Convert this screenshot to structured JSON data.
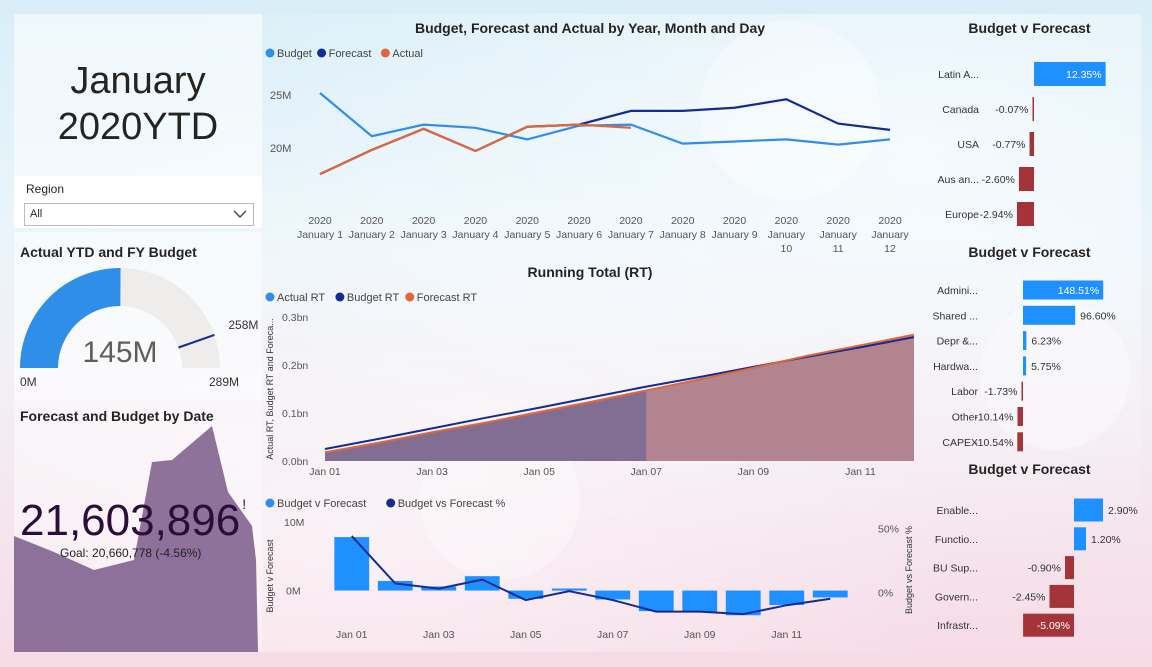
{
  "header": {
    "line1": "January",
    "line2": "2020YTD"
  },
  "region_slicer": {
    "label": "Region",
    "value": "All"
  },
  "gauge": {
    "title": "Actual YTD and FY Budget",
    "value_label": "145M",
    "min_label": "0M",
    "max_label": "289M",
    "target_label": "258M",
    "value": 145,
    "min": 0,
    "max": 289,
    "target": 258
  },
  "kpi": {
    "title": "Forecast and Budget by Date",
    "value": "21,603,896",
    "suffix": "!",
    "goal_text": "Goal: 20,660,778 (-4.56%)"
  },
  "colors": {
    "budget": "#2f8fe8",
    "forecast": "#142c8f",
    "actual": "#e0673a",
    "positive": "#1e90ff",
    "negative": "#a4343a",
    "area": "#7a5a8a"
  },
  "chart_data": [
    {
      "type": "line",
      "title": "Budget, Forecast and Actual by Year, Month and Day",
      "legend": [
        "Budget",
        "Forecast",
        "Actual"
      ],
      "categories": [
        [
          "2020",
          "January 1"
        ],
        [
          "2020",
          "January 2"
        ],
        [
          "2020",
          "January 3"
        ],
        [
          "2020",
          "January 4"
        ],
        [
          "2020",
          "January 5"
        ],
        [
          "2020",
          "January 6"
        ],
        [
          "2020",
          "January 7"
        ],
        [
          "2020",
          "January 8"
        ],
        [
          "2020",
          "January 9"
        ],
        [
          "2020",
          "January",
          "10"
        ],
        [
          "2020",
          "January",
          "11"
        ],
        [
          "2020",
          "January",
          "12"
        ]
      ],
      "y_ticks": [
        "25M",
        "20M"
      ],
      "ylim": [
        16,
        27
      ],
      "series": [
        {
          "name": "Budget",
          "values": [
            25.2,
            21.1,
            22.2,
            21.9,
            20.8,
            22.1,
            22.2,
            20.4,
            20.6,
            20.8,
            20.3,
            20.8
          ]
        },
        {
          "name": "Forecast",
          "values": [
            17.5,
            19.8,
            21.8,
            19.7,
            22.0,
            22.2,
            23.5,
            23.5,
            23.8,
            24.6,
            22.3,
            21.7
          ]
        },
        {
          "name": "Actual",
          "values": [
            17.5,
            19.8,
            21.8,
            19.7,
            22.0,
            22.2,
            21.9,
            null,
            null,
            null,
            null,
            null
          ]
        }
      ]
    },
    {
      "type": "area",
      "title": "Running Total (RT)",
      "legend": [
        "Actual RT",
        "Budget RT",
        "Forecast RT"
      ],
      "ylabel": "Actual RT, Budget RT and Foreca...",
      "x_ticks": [
        "Jan 01",
        "Jan 03",
        "Jan 05",
        "Jan 07",
        "Jan 09",
        "Jan 11"
      ],
      "y_ticks": [
        "0.3bn",
        "0.2bn",
        "0.1bn",
        "0.0bn"
      ],
      "ylim": [
        0,
        0.3
      ],
      "series": [
        {
          "name": "Actual RT",
          "values": [
            0.018,
            0.038,
            0.06,
            0.08,
            0.102,
            0.124,
            0.146
          ]
        },
        {
          "name": "Budget RT",
          "values": [
            0.025,
            0.046,
            0.068,
            0.09,
            0.111,
            0.133,
            0.155,
            0.175,
            0.196,
            0.217,
            0.237,
            0.258
          ]
        },
        {
          "name": "Forecast RT",
          "values": [
            0.018,
            0.038,
            0.06,
            0.08,
            0.102,
            0.124,
            0.147,
            0.17,
            0.194,
            0.219,
            0.241,
            0.263
          ]
        }
      ]
    },
    {
      "type": "bar",
      "title": "",
      "legend": [
        "Budget v Forecast",
        "Budget vs Forecast %"
      ],
      "ylabel": "Budget v Forecast",
      "y2label": "Budget vs Forecast %",
      "x_ticks": [
        "Jan 01",
        "Jan 03",
        "Jan 05",
        "Jan 07",
        "Jan 09",
        "Jan 11"
      ],
      "y_ticks": [
        "10M",
        "0M"
      ],
      "y2_ticks": [
        "50%",
        "0%"
      ],
      "series": [
        {
          "name": "Budget v Forecast",
          "values": [
            7.8,
            1.4,
            0.6,
            2.1,
            -1.2,
            0.3,
            -1.3,
            -3.0,
            -3.1,
            -3.6,
            -2.1,
            -1.0
          ]
        },
        {
          "name": "Budget vs Forecast %",
          "values": [
            44,
            7,
            3,
            10,
            -6,
            1,
            -6,
            -15,
            -15,
            -17,
            -10,
            -5
          ]
        }
      ]
    },
    {
      "type": "bar",
      "orientation": "horizontal",
      "title": "Budget v Forecast",
      "categories": [
        "Latin A...",
        "Canada",
        "USA",
        "Aus an...",
        "Europe"
      ],
      "values": [
        12.35,
        -0.07,
        -0.77,
        -2.6,
        -2.94
      ],
      "labels": [
        "12.35%",
        "-0.07%",
        "-0.77%",
        "-2.60%",
        "-2.94%"
      ]
    },
    {
      "type": "bar",
      "orientation": "horizontal",
      "title": "Budget v Forecast",
      "categories": [
        "Admini...",
        "Shared ...",
        "Depr &...",
        "Hardwa...",
        "Labor",
        "Other",
        "CAPEX"
      ],
      "values": [
        148.51,
        96.6,
        6.23,
        5.75,
        -1.73,
        -10.14,
        -10.54
      ],
      "labels": [
        "148.51%",
        "96.60%",
        "6.23%",
        "5.75%",
        "-1.73%",
        "-10.14%",
        "-10.54%"
      ]
    },
    {
      "type": "bar",
      "orientation": "horizontal",
      "title": "Budget v Forecast",
      "categories": [
        "Enable...",
        "Functio...",
        "BU Sup...",
        "Govern...",
        "Infrastr..."
      ],
      "values": [
        2.9,
        1.2,
        -0.9,
        -2.45,
        -5.09
      ],
      "labels": [
        "2.90%",
        "1.20%",
        "-0.90%",
        "-2.45%",
        "-5.09%"
      ]
    }
  ]
}
